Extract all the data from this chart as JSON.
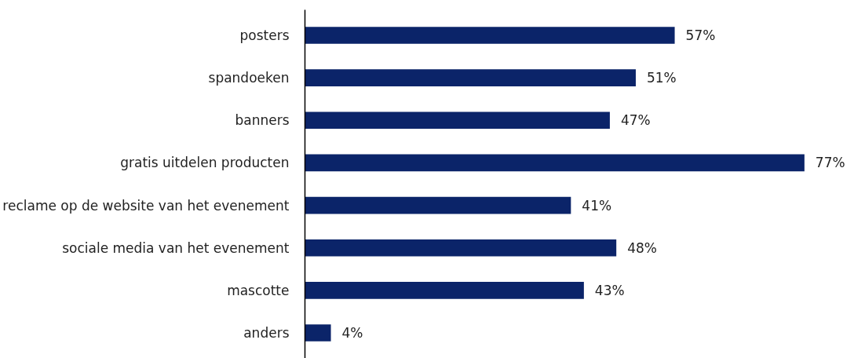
{
  "chart_data": {
    "type": "bar",
    "orientation": "horizontal",
    "categories": [
      "posters",
      "spandoeken",
      "banners",
      "gratis uitdelen producten",
      "reclame op de website van het evenement",
      "sociale media van het evenement",
      "mascotte",
      "anders"
    ],
    "values": [
      57,
      51,
      47,
      77,
      41,
      48,
      43,
      4
    ],
    "value_labels": [
      "57%",
      "51%",
      "47%",
      "77%",
      "41%",
      "48%",
      "43%",
      "4%"
    ],
    "color": "#0b2469",
    "grid": false,
    "tick_labels": "y"
  }
}
